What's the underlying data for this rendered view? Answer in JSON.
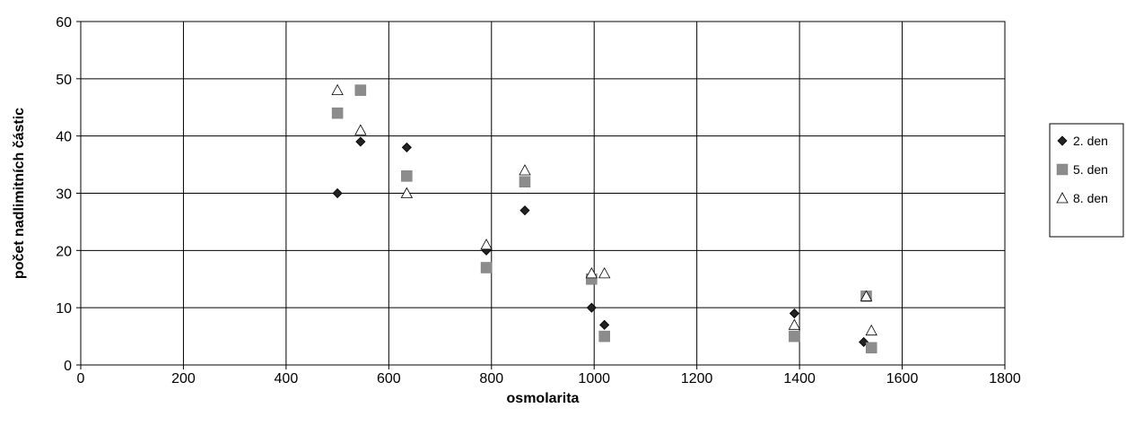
{
  "chart_data": {
    "type": "scatter",
    "title": "",
    "xlabel": "osmolarita",
    "ylabel": "počet nadlimitních částic",
    "xlim": [
      0,
      1800
    ],
    "ylim": [
      0,
      60
    ],
    "x_ticks": [
      0,
      200,
      400,
      600,
      800,
      1000,
      1200,
      1400,
      1600,
      1800
    ],
    "y_ticks": [
      0,
      10,
      20,
      30,
      40,
      50,
      60
    ],
    "grid": true,
    "legend_position": "right",
    "series": [
      {
        "name": "2. den",
        "marker": "diamond",
        "color": "#222222",
        "points": [
          {
            "x": 500,
            "y": 30
          },
          {
            "x": 545,
            "y": 39
          },
          {
            "x": 635,
            "y": 38
          },
          {
            "x": 790,
            "y": 20
          },
          {
            "x": 865,
            "y": 27
          },
          {
            "x": 995,
            "y": 10
          },
          {
            "x": 1020,
            "y": 7
          },
          {
            "x": 1390,
            "y": 9
          },
          {
            "x": 1525,
            "y": 4
          }
        ]
      },
      {
        "name": "5. den",
        "marker": "square",
        "color": "#8c8c8c",
        "points": [
          {
            "x": 500,
            "y": 44
          },
          {
            "x": 545,
            "y": 48
          },
          {
            "x": 635,
            "y": 33
          },
          {
            "x": 790,
            "y": 17
          },
          {
            "x": 865,
            "y": 32
          },
          {
            "x": 995,
            "y": 15
          },
          {
            "x": 1020,
            "y": 5
          },
          {
            "x": 1390,
            "y": 5
          },
          {
            "x": 1530,
            "y": 12
          },
          {
            "x": 1540,
            "y": 3
          }
        ]
      },
      {
        "name": "8. den",
        "marker": "triangle",
        "color": "#ffffff",
        "points": [
          {
            "x": 500,
            "y": 48
          },
          {
            "x": 545,
            "y": 41
          },
          {
            "x": 635,
            "y": 30
          },
          {
            "x": 790,
            "y": 21
          },
          {
            "x": 865,
            "y": 34
          },
          {
            "x": 995,
            "y": 16
          },
          {
            "x": 1020,
            "y": 16
          },
          {
            "x": 1390,
            "y": 7
          },
          {
            "x": 1530,
            "y": 12
          },
          {
            "x": 1540,
            "y": 6
          }
        ]
      }
    ]
  }
}
